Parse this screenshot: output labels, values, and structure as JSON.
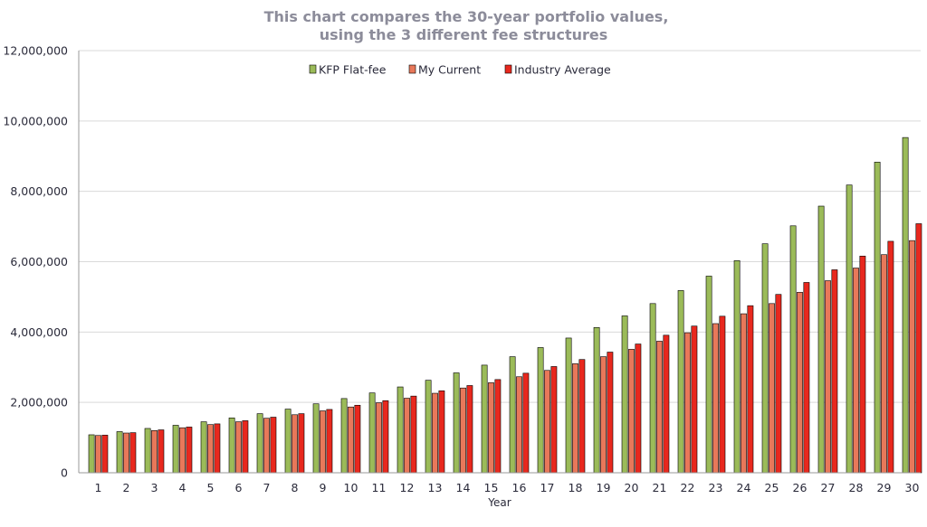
{
  "chart_data": {
    "type": "bar",
    "title_lines": [
      "This chart compares the 30-year portfolio values,",
      "using the 3 different fee structures"
    ],
    "xlabel": "Year",
    "ylabel": "",
    "ylim": [
      0,
      12000000
    ],
    "y_ticks": [
      0,
      2000000,
      4000000,
      6000000,
      8000000,
      10000000,
      12000000
    ],
    "y_tick_labels": [
      "0",
      "2,000,000",
      "4,000,000",
      "6,000,000",
      "8,000,000",
      "10,000,000",
      "12,000,000"
    ],
    "grid": true,
    "legend_position": "top-center",
    "categories": [
      "1",
      "2",
      "3",
      "4",
      "5",
      "6",
      "7",
      "8",
      "9",
      "10",
      "11",
      "12",
      "13",
      "14",
      "15",
      "16",
      "17",
      "18",
      "19",
      "20",
      "21",
      "22",
      "23",
      "24",
      "25",
      "26",
      "27",
      "28",
      "29",
      "30"
    ],
    "series": [
      {
        "name": "KFP Flat-fee",
        "color": "#9bbb59",
        "values": [
          1080000,
          1170000,
          1260000,
          1350000,
          1450000,
          1560000,
          1680000,
          1810000,
          1960000,
          2110000,
          2270000,
          2440000,
          2630000,
          2840000,
          3060000,
          3300000,
          3560000,
          3830000,
          4130000,
          4460000,
          4810000,
          5180000,
          5590000,
          6030000,
          6510000,
          7020000,
          7580000,
          8180000,
          8830000,
          9530000
        ]
      },
      {
        "name": "My Current",
        "color": "#e8785a",
        "values": [
          1060000,
          1130000,
          1200000,
          1280000,
          1370000,
          1450000,
          1550000,
          1650000,
          1760000,
          1870000,
          1990000,
          2120000,
          2260000,
          2410000,
          2560000,
          2730000,
          2910000,
          3100000,
          3300000,
          3510000,
          3740000,
          3980000,
          4240000,
          4520000,
          4810000,
          5130000,
          5460000,
          5820000,
          6200000,
          6600000
        ]
      },
      {
        "name": "Industry Average",
        "color": "#e8281e",
        "values": [
          1070000,
          1140000,
          1220000,
          1300000,
          1390000,
          1480000,
          1580000,
          1680000,
          1800000,
          1920000,
          2050000,
          2180000,
          2330000,
          2480000,
          2650000,
          2830000,
          3020000,
          3220000,
          3430000,
          3660000,
          3910000,
          4170000,
          4450000,
          4750000,
          5070000,
          5410000,
          5770000,
          6160000,
          6580000,
          7080000
        ]
      }
    ]
  }
}
